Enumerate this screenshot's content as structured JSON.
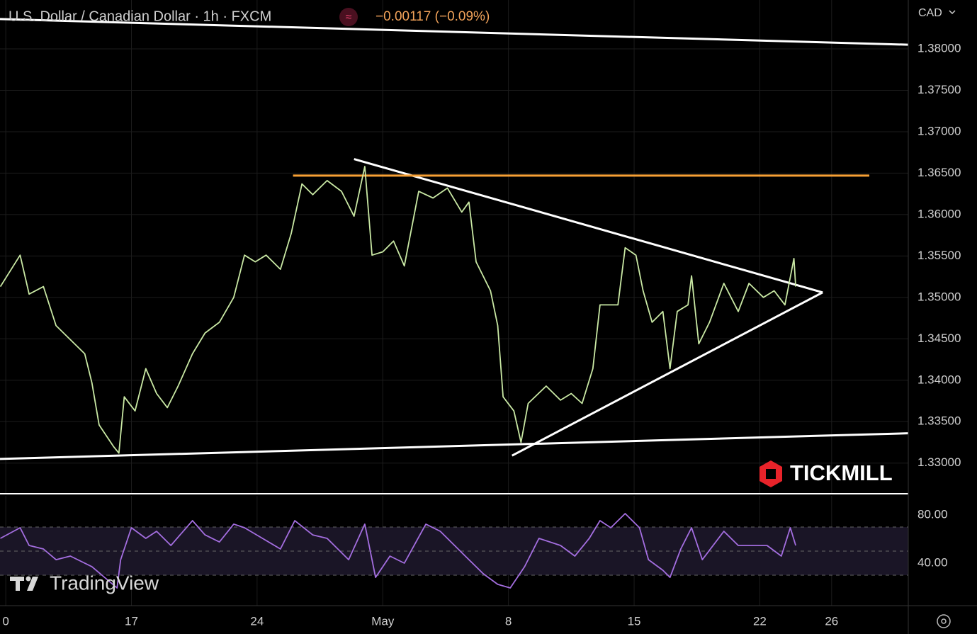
{
  "header": {
    "symbol": "U.S. Dollar / Canadian Dollar · 1h · FXCM",
    "change": "−0.00117 (−0.09%)",
    "currency": "CAD"
  },
  "watermarks": {
    "broker": "TICKMILL",
    "platform": "TradingView"
  },
  "chart_data": [
    {
      "type": "line",
      "xlim": [
        9.68,
        60.27
      ],
      "xticks": [
        {
          "value": 10,
          "label": "0"
        },
        17,
        24,
        {
          "value": 31,
          "label": "May"
        },
        {
          "value": 38,
          "label": "8"
        },
        {
          "value": 45,
          "label": "15"
        },
        {
          "value": 52,
          "label": "22"
        },
        {
          "value": 56,
          "label": "26"
        }
      ],
      "ylim": [
        1.3263,
        1.3859
      ],
      "yticks": [
        {
          "value": 1.33,
          "label": "1.33000"
        },
        {
          "value": 1.335,
          "label": "1.33500"
        },
        {
          "value": 1.34,
          "label": "1.34000"
        },
        {
          "value": 1.345,
          "label": "1.34500"
        },
        {
          "value": 1.35,
          "label": "1.35000"
        },
        {
          "value": 1.355,
          "label": "1.35500"
        },
        {
          "value": 1.36,
          "label": "1.36000"
        },
        {
          "value": 1.365,
          "label": "1.36500"
        },
        {
          "value": 1.37,
          "label": "1.37000"
        },
        {
          "value": 1.375,
          "label": "1.37500"
        },
        {
          "value": 1.38,
          "label": "1.38000"
        }
      ],
      "grid": true,
      "series": [
        {
          "color": "#c9e8a4",
          "x": [
            9.7,
            10.8,
            11.3,
            12.1,
            12.8,
            13.6,
            14.4,
            14.8,
            15.2,
            16.0,
            16.3,
            16.6,
            17.2,
            17.8,
            18.4,
            19.0,
            19.6,
            20.4,
            21.1,
            21.9,
            22.7,
            23.3,
            23.9,
            24.5,
            25.3,
            25.9,
            26.5,
            27.1,
            27.9,
            28.7,
            29.4,
            30.0,
            30.4,
            31.0,
            31.6,
            32.2,
            33.0,
            33.8,
            34.6,
            35.4,
            35.8,
            36.2,
            37.0,
            37.4,
            37.7,
            38.3,
            38.7,
            39.1,
            40.1,
            40.9,
            41.5,
            42.1,
            42.7,
            43.1,
            44.1,
            44.5,
            45.1,
            45.5,
            46.0,
            46.6,
            47.0,
            47.4,
            48.0,
            48.2,
            48.6,
            49.2,
            50.0,
            50.8,
            51.4,
            52.2,
            52.8,
            53.4,
            53.9,
            54.0
          ],
          "values": [
            1.3513,
            1.3551,
            1.3504,
            1.3513,
            1.3466,
            1.3449,
            1.3432,
            1.3397,
            1.3346,
            1.332,
            1.3312,
            1.338,
            1.3363,
            1.3414,
            1.3384,
            1.3367,
            1.3393,
            1.3432,
            1.3457,
            1.347,
            1.35,
            1.3551,
            1.3543,
            1.3551,
            1.3534,
            1.3577,
            1.3637,
            1.3624,
            1.3641,
            1.3628,
            1.3598,
            1.3658,
            1.3551,
            1.3555,
            1.3568,
            1.3538,
            1.3628,
            1.362,
            1.3632,
            1.3603,
            1.3615,
            1.3543,
            1.3508,
            1.3466,
            1.338,
            1.3363,
            1.3325,
            1.3372,
            1.3393,
            1.3376,
            1.3384,
            1.3372,
            1.3414,
            1.3491,
            1.3491,
            1.356,
            1.3551,
            1.3508,
            1.347,
            1.3483,
            1.3414,
            1.3483,
            1.3491,
            1.3526,
            1.3444,
            1.347,
            1.3517,
            1.3483,
            1.3517,
            1.35,
            1.3508,
            1.3491,
            1.3547,
            1.3513
          ]
        }
      ],
      "trendlines": [
        {
          "color": "#ffffff",
          "x": [
            9.68,
            60.27
          ],
          "values": [
            1.3836,
            1.3805
          ]
        },
        {
          "color": "#ffffff",
          "x": [
            9.68,
            60.27
          ],
          "values": [
            1.3305,
            1.3336
          ]
        },
        {
          "color": "#ffffff",
          "x": [
            29.4,
            55.5
          ],
          "values": [
            1.3667,
            1.3506
          ]
        },
        {
          "color": "#ffffff",
          "x": [
            38.2,
            55.5
          ],
          "values": [
            1.3309,
            1.3506
          ]
        },
        {
          "color": "#f7a035",
          "x": [
            26.0,
            58.1
          ],
          "values": [
            1.3647,
            1.3647
          ]
        }
      ]
    },
    {
      "type": "line",
      "xlim": [
        9.68,
        60.27
      ],
      "ylim": [
        4.7,
        95.9
      ],
      "yticks": [
        {
          "value": 80,
          "label": "80.00"
        },
        {
          "value": 40,
          "label": "40.00"
        }
      ],
      "levels": [
        70,
        50,
        30
      ],
      "series": [
        {
          "color": "#a46ee0",
          "x": [
            9.7,
            10.8,
            11.3,
            12.1,
            12.8,
            13.6,
            14.8,
            16.2,
            16.4,
            17.0,
            17.8,
            18.4,
            19.2,
            20.4,
            21.1,
            21.9,
            22.7,
            23.3,
            24.3,
            25.3,
            26.1,
            27.1,
            27.9,
            29.1,
            30.0,
            30.6,
            31.4,
            32.2,
            33.4,
            34.2,
            35.0,
            35.8,
            36.6,
            37.4,
            38.1,
            38.9,
            39.7,
            40.9,
            41.7,
            42.5,
            43.1,
            43.7,
            44.5,
            45.3,
            45.8,
            46.6,
            47.0,
            47.6,
            48.2,
            48.8,
            50.0,
            50.8,
            51.6,
            52.4,
            53.2,
            53.7,
            54.0
          ],
          "values": [
            60.6,
            69.4,
            54.7,
            51.8,
            42.9,
            45.9,
            37.1,
            19.4,
            42.9,
            69.4,
            60.6,
            66.5,
            54.7,
            75.3,
            63.5,
            57.6,
            72.4,
            69.4,
            60.6,
            51.8,
            75.3,
            63.5,
            60.6,
            42.9,
            72.4,
            28.2,
            45.9,
            40.0,
            72.4,
            66.5,
            54.7,
            42.9,
            31.2,
            22.4,
            19.4,
            37.1,
            60.6,
            54.7,
            45.9,
            60.6,
            75.3,
            69.4,
            81.2,
            69.4,
            42.9,
            34.1,
            28.2,
            51.8,
            69.4,
            42.9,
            66.5,
            54.7,
            54.7,
            54.7,
            45.9,
            69.4,
            54.7
          ]
        }
      ]
    }
  ]
}
